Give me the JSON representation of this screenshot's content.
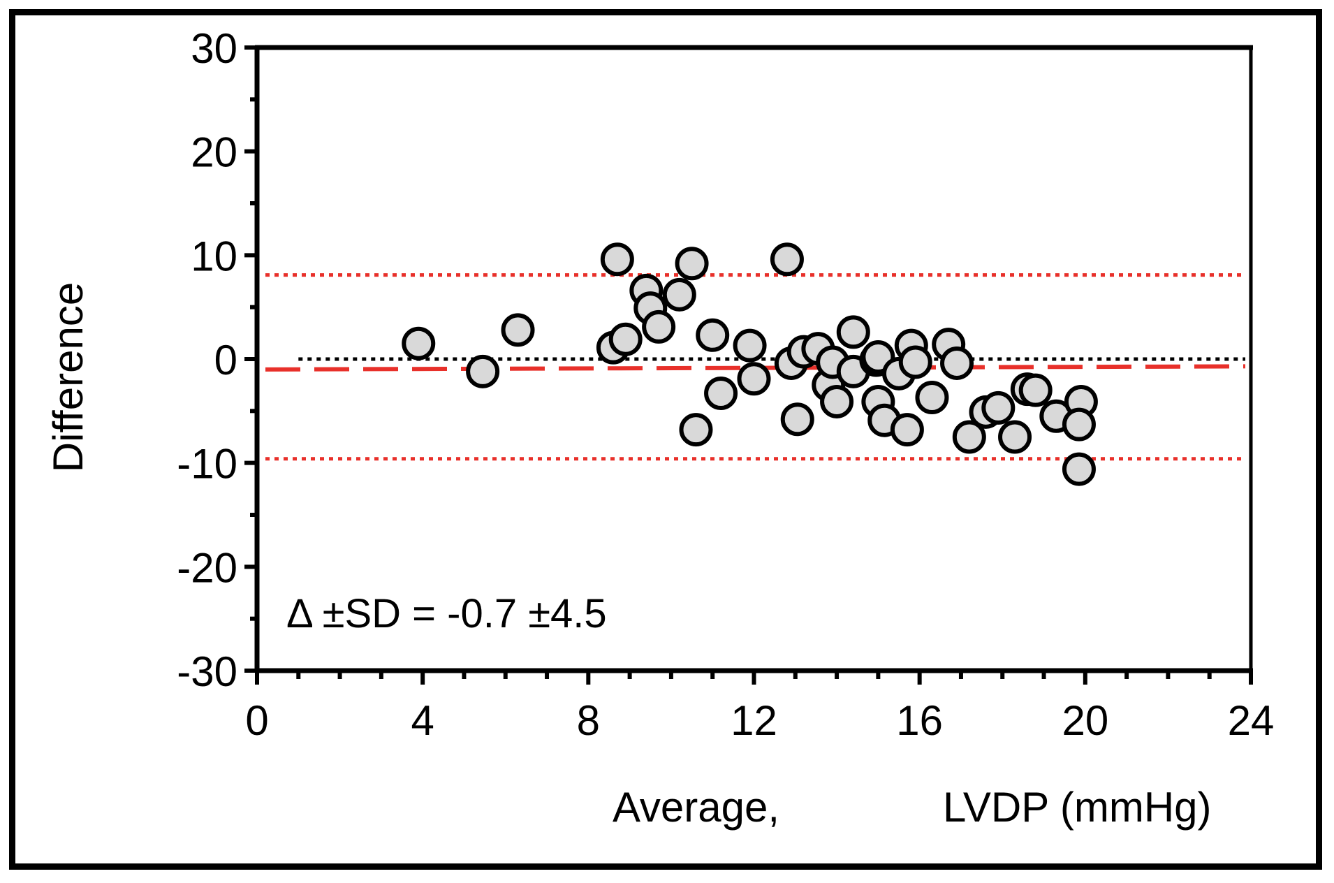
{
  "chart_data": {
    "type": "scatter",
    "title": "",
    "xlabel_parts": [
      "Average,",
      "LVDP (mmHg)"
    ],
    "ylabel": "Difference",
    "xlim": [
      0,
      24
    ],
    "ylim": [
      -30,
      30
    ],
    "x_ticks": [
      0,
      4,
      8,
      12,
      16,
      20,
      24
    ],
    "x_tick_labels": [
      "0",
      "4",
      "8",
      "12",
      "16",
      "20",
      "24"
    ],
    "x_minor_step": 1,
    "y_ticks": [
      30,
      20,
      10,
      0,
      -10,
      -20,
      -30
    ],
    "y_tick_labels": [
      "30",
      "20",
      "10",
      "0",
      "-10",
      "-20",
      "-30"
    ],
    "y_minor_step": 5,
    "grid": false,
    "annotation": "Δ ±SD = -0.7 ±4.5",
    "reference_lines": {
      "zero": {
        "y": 0,
        "style": "dotted",
        "color": "#000000"
      },
      "upper_loa": {
        "y": 8.1,
        "style": "dotted",
        "color": "#e8302a"
      },
      "lower_loa": {
        "y": -9.6,
        "style": "dotted",
        "color": "#e8302a"
      },
      "bias": {
        "x": [
          0.5,
          24
        ],
        "y": [
          -1.0,
          -0.7
        ],
        "style": "dashed",
        "color": "#e8302a"
      }
    },
    "marker": {
      "fill": "#d9d9d9",
      "stroke": "#000000"
    },
    "points": [
      {
        "x": 3.9,
        "y": 1.5
      },
      {
        "x": 5.45,
        "y": -1.2
      },
      {
        "x": 6.3,
        "y": 2.8
      },
      {
        "x": 8.7,
        "y": 9.6
      },
      {
        "x": 8.6,
        "y": 1.1
      },
      {
        "x": 8.9,
        "y": 1.9
      },
      {
        "x": 9.4,
        "y": 6.6
      },
      {
        "x": 9.5,
        "y": 4.9
      },
      {
        "x": 9.7,
        "y": 3.1
      },
      {
        "x": 10.2,
        "y": 6.2
      },
      {
        "x": 10.5,
        "y": 9.2
      },
      {
        "x": 10.6,
        "y": -6.8
      },
      {
        "x": 11.0,
        "y": 2.3
      },
      {
        "x": 11.2,
        "y": -3.3
      },
      {
        "x": 11.9,
        "y": 1.3
      },
      {
        "x": 12.0,
        "y": -1.9
      },
      {
        "x": 12.8,
        "y": 9.6
      },
      {
        "x": 12.9,
        "y": -0.4
      },
      {
        "x": 13.05,
        "y": -5.8
      },
      {
        "x": 13.2,
        "y": 0.7
      },
      {
        "x": 13.55,
        "y": 1.0
      },
      {
        "x": 13.8,
        "y": -2.5
      },
      {
        "x": 13.9,
        "y": -0.3
      },
      {
        "x": 14.0,
        "y": -4.1
      },
      {
        "x": 14.4,
        "y": 2.6
      },
      {
        "x": 14.4,
        "y": -1.2
      },
      {
        "x": 14.95,
        "y": -0.1
      },
      {
        "x": 15.0,
        "y": 0.2
      },
      {
        "x": 15.0,
        "y": -4.1
      },
      {
        "x": 15.15,
        "y": -5.9
      },
      {
        "x": 15.5,
        "y": -1.4
      },
      {
        "x": 15.7,
        "y": -6.8
      },
      {
        "x": 15.8,
        "y": 1.3
      },
      {
        "x": 15.9,
        "y": -0.3
      },
      {
        "x": 16.3,
        "y": -3.7
      },
      {
        "x": 16.7,
        "y": 1.4
      },
      {
        "x": 16.9,
        "y": -0.4
      },
      {
        "x": 17.2,
        "y": -7.5
      },
      {
        "x": 17.6,
        "y": -5.1
      },
      {
        "x": 17.9,
        "y": -4.7
      },
      {
        "x": 18.3,
        "y": -7.5
      },
      {
        "x": 18.6,
        "y": -2.9
      },
      {
        "x": 18.8,
        "y": -3.0
      },
      {
        "x": 19.3,
        "y": -5.5
      },
      {
        "x": 19.9,
        "y": -4.1
      },
      {
        "x": 19.85,
        "y": -6.3
      },
      {
        "x": 19.85,
        "y": -10.6
      }
    ]
  }
}
